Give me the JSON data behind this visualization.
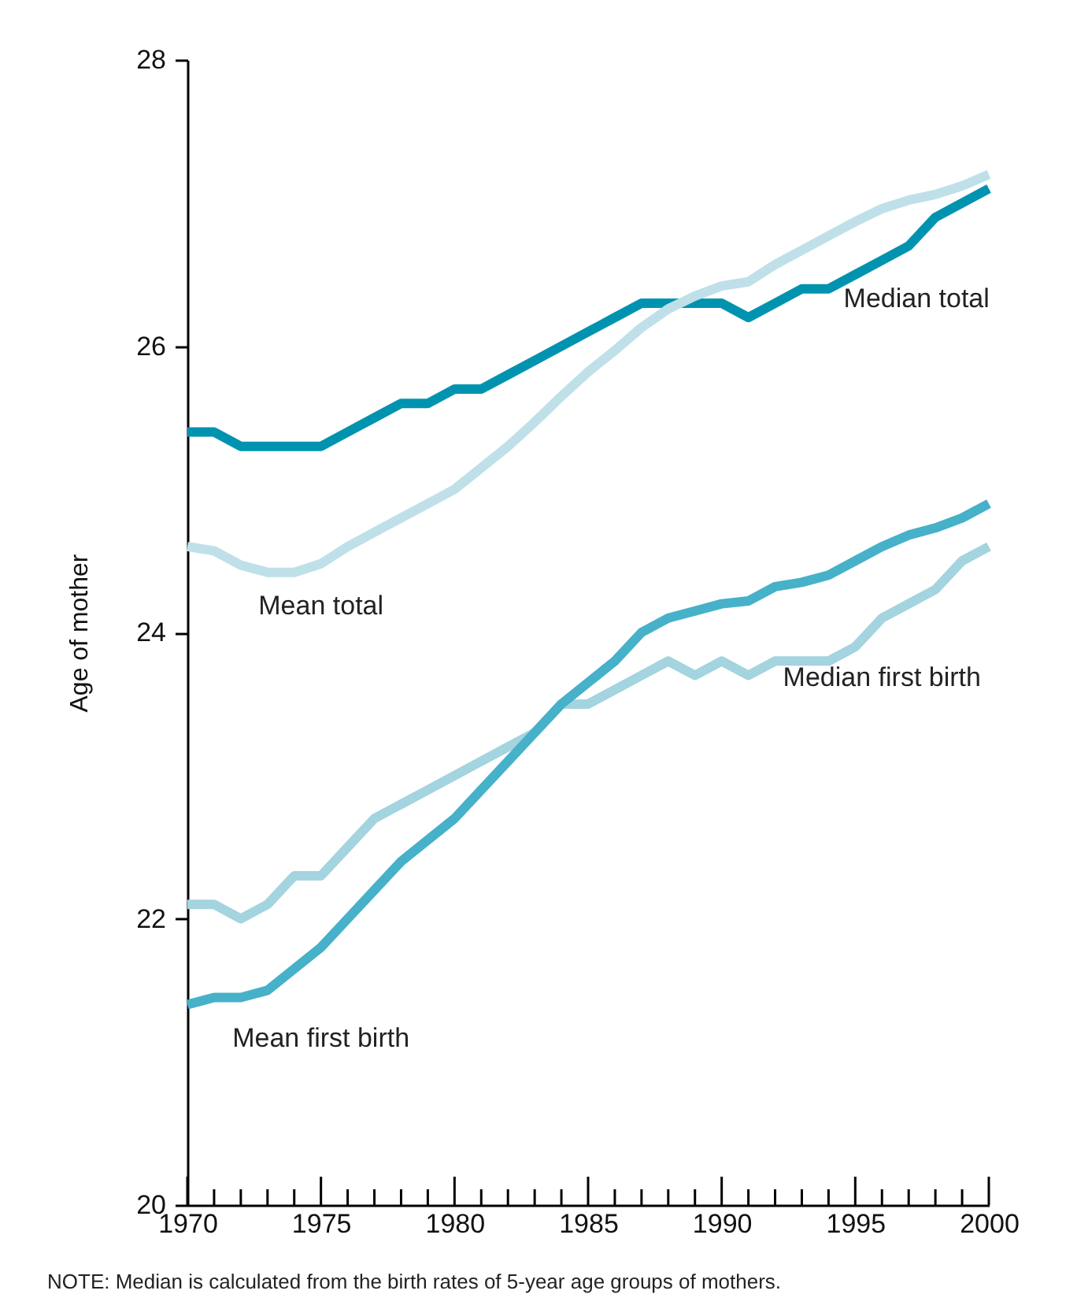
{
  "chart_data": {
    "type": "line",
    "ylabel": "Age of mother",
    "x": [
      1970,
      1971,
      1972,
      1973,
      1974,
      1975,
      1976,
      1977,
      1978,
      1979,
      1980,
      1981,
      1982,
      1983,
      1984,
      1985,
      1986,
      1987,
      1988,
      1989,
      1990,
      1991,
      1992,
      1993,
      1994,
      1995,
      1996,
      1997,
      1998,
      1999,
      2000
    ],
    "xlim": [
      1970,
      2000
    ],
    "xticks": [
      1970,
      {
        "value": 1971,
        "label": null
      },
      {
        "value": 1972,
        "label": null
      },
      {
        "value": 1973,
        "label": null
      },
      {
        "value": 1974,
        "label": null
      },
      1975,
      {
        "value": 1976,
        "label": null
      },
      {
        "value": 1977,
        "label": null
      },
      {
        "value": 1978,
        "label": null
      },
      {
        "value": 1979,
        "label": null
      },
      1980,
      {
        "value": 1981,
        "label": null
      },
      {
        "value": 1982,
        "label": null
      },
      {
        "value": 1983,
        "label": null
      },
      {
        "value": 1984,
        "label": null
      },
      1985,
      {
        "value": 1986,
        "label": null
      },
      {
        "value": 1987,
        "label": null
      },
      {
        "value": 1988,
        "label": null
      },
      {
        "value": 1989,
        "label": null
      },
      1990,
      {
        "value": 1991,
        "label": null
      },
      {
        "value": 1992,
        "label": null
      },
      {
        "value": 1993,
        "label": null
      },
      {
        "value": 1994,
        "label": null
      },
      1995,
      {
        "value": 1996,
        "label": null
      },
      {
        "value": 1997,
        "label": null
      },
      {
        "value": 1998,
        "label": null
      },
      {
        "value": 1999,
        "label": null
      },
      2000
    ],
    "ylim": [
      20,
      28
    ],
    "yticks": [
      20,
      22,
      24,
      26,
      28
    ],
    "grid": false,
    "legend": false,
    "marker": "none",
    "line_style": "solid",
    "series": [
      {
        "name": "Median total",
        "color": "#0093b0",
        "values": [
          25.4,
          25.4,
          25.3,
          25.3,
          25.3,
          25.3,
          25.4,
          25.5,
          25.6,
          25.6,
          25.7,
          25.7,
          25.8,
          25.9,
          26.0,
          26.1,
          26.2,
          26.3,
          26.3,
          26.3,
          26.3,
          26.2,
          26.3,
          26.4,
          26.4,
          26.5,
          26.6,
          26.7,
          26.9,
          27.0,
          27.1
        ]
      },
      {
        "name": "Mean total",
        "color": "#bfe0e8",
        "values": [
          24.6,
          24.57,
          24.47,
          24.42,
          24.42,
          24.48,
          24.6,
          24.7,
          24.8,
          24.9,
          25.0,
          25.15,
          25.3,
          25.47,
          25.65,
          25.82,
          25.97,
          26.13,
          26.26,
          26.35,
          26.42,
          26.45,
          26.57,
          26.67,
          26.77,
          26.87,
          26.96,
          27.02,
          27.06,
          27.12,
          27.2
        ]
      },
      {
        "name": "Median first birth",
        "color": "#a3d4df",
        "values": [
          22.1,
          22.1,
          22.0,
          22.1,
          22.3,
          22.3,
          22.5,
          22.7,
          22.8,
          22.9,
          23.0,
          23.1,
          23.2,
          23.3,
          23.5,
          23.5,
          23.6,
          23.7,
          23.8,
          23.7,
          23.8,
          23.7,
          23.8,
          23.8,
          23.8,
          23.9,
          24.1,
          24.2,
          24.3,
          24.5,
          24.6
        ]
      },
      {
        "name": "Mean first birth",
        "color": "#46b1c9",
        "values": [
          21.4,
          21.45,
          21.45,
          21.5,
          21.65,
          21.8,
          22.0,
          22.2,
          22.4,
          22.55,
          22.7,
          22.9,
          23.1,
          23.3,
          23.5,
          23.65,
          23.8,
          24.0,
          24.1,
          24.15,
          24.2,
          24.22,
          24.32,
          24.35,
          24.4,
          24.5,
          24.6,
          24.68,
          24.73,
          24.8,
          24.9
        ]
      }
    ],
    "annotations": [
      "NOTE: Median is calculated from the birth rates of 5-year age groups of mothers."
    ]
  }
}
